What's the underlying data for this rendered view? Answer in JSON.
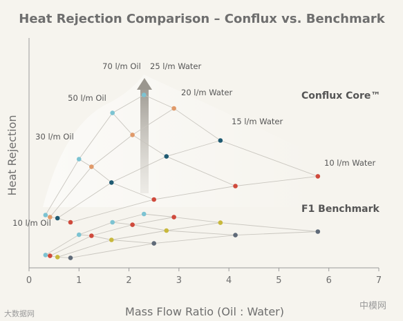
{
  "chart_data": {
    "type": "scatter",
    "title": "Heat Rejection Comparison – Conflux vs. Benchmark",
    "xlabel": "Mass Flow Ratio (Oil : Water)",
    "ylabel": "Heat Rejection",
    "xlim": [
      0,
      7
    ],
    "x_ticks": [
      "0",
      "1",
      "2",
      "3",
      "4",
      "5",
      "6",
      "7"
    ],
    "y_ticks": false,
    "grid": false,
    "oil_flow_labels": [
      "70 l/m Oil",
      "50 l/m Oil",
      "30 l/m Oil",
      "10 l/m Oil"
    ],
    "water_flow_labels": [
      "25 l/m Water",
      "20 l/m Water",
      "15 l/m Water",
      "10 l/m Water"
    ],
    "water_colors": {
      "25 l/m Water": "#7cc3d2",
      "20 l/m Water": "#e09a6a",
      "15 l/m Water": "#1f5a72",
      "10 l/m Water": "#cf4a3c"
    },
    "benchmark_colors": [
      "#7cc3d2",
      "#cf4a3c",
      "#c8b83c",
      "#5f6a78"
    ],
    "groups": [
      {
        "name": "Conflux Core™",
        "points": [
          {
            "oil": "70 l/m Oil",
            "water": "25 l/m Water",
            "x": 2.3,
            "y": 8.35
          },
          {
            "oil": "70 l/m Oil",
            "water": "20 l/m Water",
            "x": 2.9,
            "y": 7.7
          },
          {
            "oil": "70 l/m Oil",
            "water": "15 l/m Water",
            "x": 3.83,
            "y": 6.15
          },
          {
            "oil": "70 l/m Oil",
            "water": "10 l/m Water",
            "x": 5.78,
            "y": 4.42
          },
          {
            "oil": "50 l/m Oil",
            "water": "25 l/m Water",
            "x": 1.67,
            "y": 7.48
          },
          {
            "oil": "50 l/m Oil",
            "water": "20 l/m Water",
            "x": 2.07,
            "y": 6.42
          },
          {
            "oil": "50 l/m Oil",
            "water": "15 l/m Water",
            "x": 2.75,
            "y": 5.38
          },
          {
            "oil": "50 l/m Oil",
            "water": "10 l/m Water",
            "x": 4.13,
            "y": 3.95
          },
          {
            "oil": "30 l/m Oil",
            "water": "25 l/m Water",
            "x": 1.0,
            "y": 5.25
          },
          {
            "oil": "30 l/m Oil",
            "water": "20 l/m Water",
            "x": 1.25,
            "y": 4.88
          },
          {
            "oil": "30 l/m Oil",
            "water": "15 l/m Water",
            "x": 1.65,
            "y": 4.12
          },
          {
            "oil": "30 l/m Oil",
            "water": "10 l/m Water",
            "x": 2.5,
            "y": 3.3
          },
          {
            "oil": "10 l/m Oil",
            "water": "25 l/m Water",
            "x": 0.33,
            "y": 2.55
          },
          {
            "oil": "10 l/m Oil",
            "water": "20 l/m Water",
            "x": 0.42,
            "y": 2.45
          },
          {
            "oil": "10 l/m Oil",
            "water": "15 l/m Water",
            "x": 0.57,
            "y": 2.4
          },
          {
            "oil": "10 l/m Oil",
            "water": "10 l/m Water",
            "x": 0.83,
            "y": 2.2
          }
        ]
      },
      {
        "name": "F1 Benchmark",
        "points": [
          {
            "oil": "70 l/m Oil",
            "series": 0,
            "x": 2.3,
            "y": 2.6
          },
          {
            "oil": "70 l/m Oil",
            "series": 1,
            "x": 2.9,
            "y": 2.45
          },
          {
            "oil": "70 l/m Oil",
            "series": 2,
            "x": 3.83,
            "y": 2.18
          },
          {
            "oil": "70 l/m Oil",
            "series": 3,
            "x": 5.78,
            "y": 1.75
          },
          {
            "oil": "50 l/m Oil",
            "series": 0,
            "x": 1.67,
            "y": 2.2
          },
          {
            "oil": "50 l/m Oil",
            "series": 1,
            "x": 2.07,
            "y": 2.08
          },
          {
            "oil": "50 l/m Oil",
            "series": 2,
            "x": 2.75,
            "y": 1.8
          },
          {
            "oil": "50 l/m Oil",
            "series": 3,
            "x": 4.13,
            "y": 1.58
          },
          {
            "oil": "30 l/m Oil",
            "series": 0,
            "x": 1.0,
            "y": 1.6
          },
          {
            "oil": "30 l/m Oil",
            "series": 1,
            "x": 1.25,
            "y": 1.55
          },
          {
            "oil": "30 l/m Oil",
            "series": 2,
            "x": 1.65,
            "y": 1.35
          },
          {
            "oil": "30 l/m Oil",
            "series": 3,
            "x": 2.5,
            "y": 1.18
          },
          {
            "oil": "10 l/m Oil",
            "series": 0,
            "x": 0.33,
            "y": 0.62
          },
          {
            "oil": "10 l/m Oil",
            "series": 1,
            "x": 0.42,
            "y": 0.58
          },
          {
            "oil": "10 l/m Oil",
            "series": 2,
            "x": 0.57,
            "y": 0.52
          },
          {
            "oil": "10 l/m Oil",
            "series": 3,
            "x": 0.83,
            "y": 0.48
          }
        ]
      }
    ],
    "annotations": [
      "Conflux Core™",
      "F1 Benchmark"
    ]
  },
  "watermark_left": "大数据网",
  "watermark_right": "中模网"
}
